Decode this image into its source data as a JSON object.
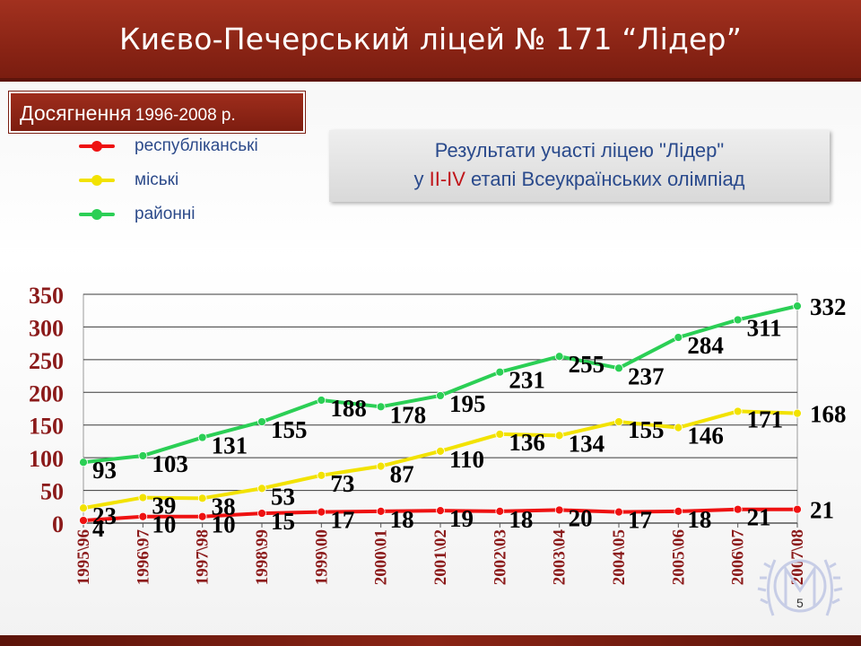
{
  "header": {
    "title": "Києво-Печерський ліцей № 171 “Лідер”"
  },
  "achievements": {
    "label": "Досягнення",
    "years": "1996-2008 р."
  },
  "results": {
    "line1": "Результати участі ліцею \"Лідер\"",
    "line2_pre": "у ",
    "line2_stage": "ІІ-IV",
    "line2_post": " етапі Всеукраїнських олімпіад"
  },
  "colors": {
    "title_bar": "#8a2415",
    "axis_labels": "#8b1a1a",
    "republican": "#ee1111",
    "city": "#f2e200",
    "district": "#2bcf55",
    "legend_text": "#2c4a8a"
  },
  "page_number": "5",
  "chart_data": {
    "type": "line",
    "categories": [
      "1995\\96",
      "1996\\97",
      "1997\\98",
      "1998\\99",
      "1999\\00",
      "2000\\01",
      "2001\\02",
      "2002\\03",
      "2003\\04",
      "2004\\05",
      "2005\\06",
      "2006\\07",
      "2007\\08"
    ],
    "ylim": [
      0,
      350
    ],
    "yticks": [
      0,
      50,
      100,
      150,
      200,
      250,
      300,
      350
    ],
    "grid": true,
    "legend_placement": "top-left",
    "series": [
      {
        "name": "республіканські",
        "color": "#ee1111",
        "values": [
          4,
          10,
          10,
          15,
          17,
          18,
          19,
          18,
          20,
          17,
          18,
          21,
          21
        ]
      },
      {
        "name": "міські",
        "color": "#f2e200",
        "values": [
          23,
          39,
          38,
          53,
          73,
          87,
          110,
          136,
          134,
          155,
          146,
          171,
          168
        ]
      },
      {
        "name": "районні",
        "color": "#2bcf55",
        "values": [
          93,
          103,
          131,
          155,
          188,
          178,
          195,
          231,
          255,
          237,
          284,
          311,
          332
        ]
      }
    ]
  }
}
